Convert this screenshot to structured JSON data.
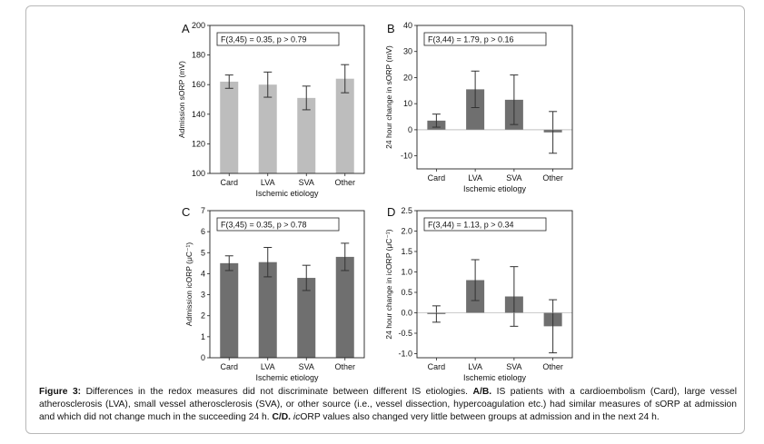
{
  "chart_data": [
    {
      "type": "bar",
      "panel_label": "A",
      "title": "",
      "stat": "F(3,45) = 0.35, p > 0.79",
      "xlabel": "Ischemic etiology",
      "ylabel": "Admission sORP (mV)",
      "categories": [
        "Card",
        "LVA",
        "SVA",
        "Other"
      ],
      "values": [
        162,
        160,
        151,
        164
      ],
      "errors": [
        4.5,
        8.5,
        8,
        9.5
      ],
      "ylim": [
        100,
        200
      ],
      "yticks": [
        100,
        120,
        140,
        160,
        180,
        200
      ],
      "bar_color": "#bdbdbd"
    },
    {
      "type": "bar",
      "panel_label": "B",
      "title": "",
      "stat": "F(3,44) = 1.79, p > 0.16",
      "xlabel": "Ischemic etiology",
      "ylabel": "24 hour change in sORP (mV)",
      "categories": [
        "Card",
        "LVA",
        "SVA",
        "Other"
      ],
      "values": [
        3.5,
        15.5,
        11.5,
        -1
      ],
      "errors": [
        2.5,
        7,
        9.5,
        8
      ],
      "ylim": [
        -15,
        40
      ],
      "yticks": [
        -10,
        0,
        10,
        20,
        30,
        40
      ],
      "bar_color": "#6f6f6f"
    },
    {
      "type": "bar",
      "panel_label": "C",
      "title": "",
      "stat": "F(3,45) = 0.35, p > 0.78",
      "xlabel": "Ischemic etiology",
      "ylabel": "Admission icORP (μC⁻¹)",
      "categories": [
        "Card",
        "LVA",
        "SVA",
        "Other"
      ],
      "values": [
        4.5,
        4.55,
        3.8,
        4.8
      ],
      "errors": [
        0.35,
        0.7,
        0.6,
        0.65
      ],
      "ylim": [
        0,
        7
      ],
      "yticks": [
        0,
        1,
        2,
        3,
        4,
        5,
        6,
        7
      ],
      "bar_color": "#6f6f6f"
    },
    {
      "type": "bar",
      "panel_label": "D",
      "title": "",
      "stat": "F(3,44) = 1.13, p > 0.34",
      "xlabel": "Ischemic etiology",
      "ylabel": "24 hour change in icORP (μC⁻¹)",
      "categories": [
        "Card",
        "LVA",
        "SVA",
        "Other"
      ],
      "values": [
        -0.03,
        0.8,
        0.4,
        -0.33
      ],
      "errors": [
        0.2,
        0.5,
        0.73,
        0.65
      ],
      "ylim": [
        -1.1,
        2.5
      ],
      "yticks": [
        -1.0,
        -0.5,
        0.0,
        0.5,
        1.0,
        1.5,
        2.0,
        2.5
      ],
      "bar_color": "#6f6f6f"
    }
  ],
  "caption": {
    "prefix": "Figure 3:",
    "text1": " Differences in the redox measures did not discriminate between different IS etiologies. ",
    "ab": "A/B.",
    "text2": " IS patients with a cardioembolism (Card), large vessel atherosclerosis (LVA), small vessel atherosclerosis (SVA), or other source (i.e., vessel dissection, hypercoagulation etc.) had similar measures of sORP at admission and which did not change much in the succeeding 24 h. ",
    "cd": "C/D.",
    "ic": " ic",
    "text3": "ORP values also changed very little between groups at admission and in the next 24 h."
  }
}
